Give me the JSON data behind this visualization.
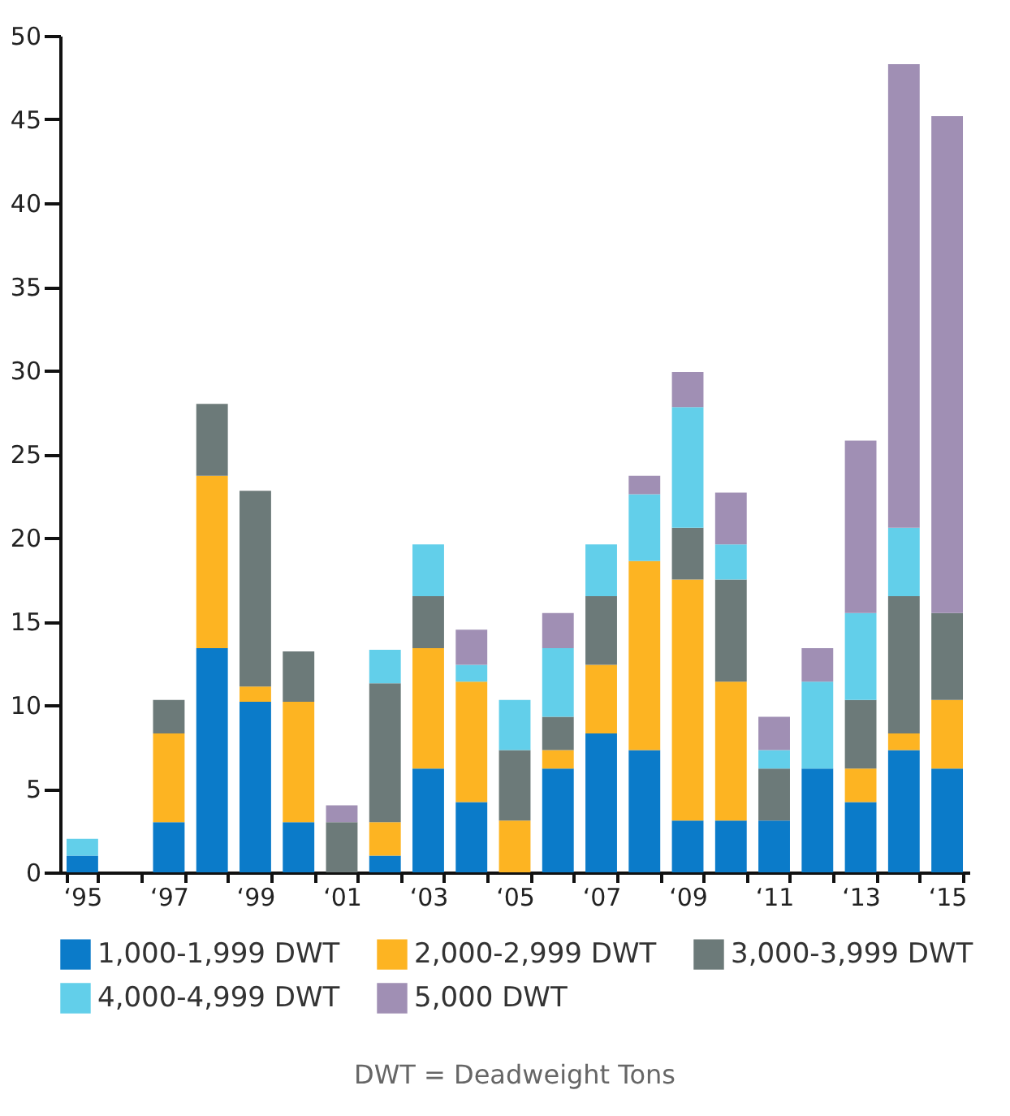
{
  "chart_data": {
    "type": "bar",
    "stacked": true,
    "categories": [
      "‘95",
      null,
      "‘97",
      null,
      "‘99",
      null,
      "‘01",
      null,
      "‘03",
      null,
      "‘05",
      null,
      "‘07",
      null,
      "‘09",
      null,
      "‘11",
      null,
      "‘13",
      null,
      "‘15"
    ],
    "series": [
      {
        "name": "1,000-1,999 DWT",
        "color": "#0b7bc9",
        "values": [
          1,
          null,
          3,
          13.4,
          10.2,
          3,
          null,
          1,
          6.2,
          4.2,
          null,
          6.2,
          8.3,
          7.3,
          3.1,
          3.1,
          3.1,
          6.2,
          4.2,
          7.3,
          6.2
        ]
      },
      {
        "name": "2,000-2,999 DWT",
        "color": "#fdb422",
        "values": [
          null,
          null,
          5.3,
          10.3,
          0.9,
          7.2,
          null,
          2,
          7.2,
          7.2,
          3.1,
          1.1,
          4.1,
          11.3,
          14.4,
          8.3,
          null,
          null,
          2,
          1,
          4.1
        ]
      },
      {
        "name": "3,000-3,999 DWT",
        "color": "#6c7a79",
        "values": [
          null,
          null,
          2,
          4.3,
          11.7,
          3,
          3,
          8.3,
          3.1,
          null,
          4.2,
          2,
          4.1,
          null,
          3.1,
          6.1,
          3.1,
          null,
          4.1,
          8.2,
          5.2
        ]
      },
      {
        "name": "4,000-4,999 DWT",
        "color": "#62cfea",
        "values": [
          1,
          null,
          null,
          null,
          null,
          null,
          null,
          2,
          3.1,
          1,
          3,
          4.1,
          3.1,
          4,
          7.2,
          2.1,
          1.1,
          5.2,
          5.2,
          4.1,
          null
        ]
      },
      {
        "name": "5,000 DWT",
        "color": "#a08fb4",
        "values": [
          null,
          null,
          null,
          null,
          null,
          null,
          1,
          null,
          null,
          2.1,
          null,
          2.1,
          null,
          1.1,
          2.1,
          3.1,
          2,
          2,
          10.3,
          27.7,
          29.7
        ]
      }
    ],
    "ylim": [
      0,
      50
    ],
    "yticks": [
      0,
      5,
      10,
      15,
      20,
      25,
      30,
      35,
      40,
      45,
      50
    ],
    "grid": false,
    "legend": "bottom",
    "annotations": [
      "DWT = Deadweight Tons"
    ]
  }
}
